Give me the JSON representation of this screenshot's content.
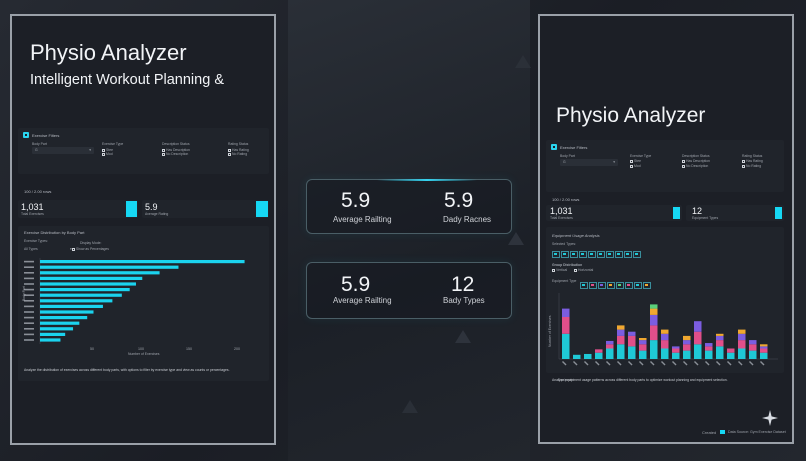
{
  "left": {
    "title": "Physio Analyzer",
    "subtitle": "Intelligent Workout Planning &",
    "filters": {
      "heading": "Exercise Filters",
      "body_part_label": "Body Part",
      "body_part_value": "G",
      "exercise_type_label": "Exercise Type",
      "exercise_type_options": [
        "Stee",
        "Mod"
      ],
      "description_status_label": "Description Status",
      "description_status_options": [
        "Has Description",
        "No Description"
      ],
      "rating_status_label": "Rating Status",
      "rating_status_options": [
        "Has Rating",
        "No Rating"
      ]
    },
    "rows_count": "100 / 2.00 rows",
    "kpi1_value": "1,031",
    "kpi1_label": "Total Exercises",
    "kpi2_value": "5.9",
    "kpi2_label": "Average Rating",
    "chart": {
      "title": "Exercise Distribution by Body Part",
      "type_label": "Exercise Types:",
      "type_value": "All Types",
      "display_label": "Display Mode:",
      "display_option": "Show as Percentages",
      "ylabel": "Body Part",
      "xlabel": "Number of Exercises",
      "caption": "Analyze the distribution of exercises across different body parts, with options to filter by exercise type and view as counts or percentages."
    }
  },
  "center": {
    "stat1": {
      "value": "5.9",
      "label": "Average Railting"
    },
    "stat2": {
      "value": "5.9",
      "label": "Dady Racnes"
    },
    "stat3": {
      "value": "5.9",
      "label": "Average Railting"
    },
    "stat4": {
      "value": "12",
      "label": "Bady Types"
    }
  },
  "right": {
    "title": "Physio Analyzer",
    "filters": {
      "heading": "Exercise Filters",
      "body_part_label": "Body Part",
      "body_part_value": "G",
      "exercise_type_label": "Exercise Type",
      "exercise_type_options": [
        "Stee",
        "Mod"
      ],
      "description_status_label": "Description Status",
      "description_status_options": [
        "Has Description",
        "No Description"
      ],
      "rating_status_label": "Rating Status",
      "rating_status_options": [
        "Has Rating",
        "No Rating"
      ]
    },
    "rows_count": "100 / 2.00 rows",
    "kpi1_value": "1,031",
    "kpi1_label": "Total Exercises",
    "kpi2_value": "12",
    "kpi2_label": "Equipment Types",
    "chart": {
      "title": "Equipment Usage Analysis",
      "selected_types_label": "Selected Types:",
      "group_label": "Group Distribution",
      "group_options": [
        "Vertical",
        "Horizontal"
      ],
      "equipment_label": "Equipment Type",
      "ylabel": "Number of Exercises",
      "xlabel": "Equipment",
      "caption": "Analyze equipment usage patterns across different body parts to optimize workout planning and equipment selection."
    },
    "footer_left": "Created",
    "footer_right": "Data Source: Gym Exercise Dataset"
  },
  "colors": {
    "accent": "#16d8f4",
    "panel_border": "#9aa0a8",
    "background": "#1f232b"
  },
  "chart_data": [
    {
      "type": "bar",
      "orientation": "horizontal",
      "title": "Exercise Distribution by Body Part",
      "ylabel": "Body Part",
      "xlabel": "Number of Exercises",
      "values": [
        650,
        440,
        380,
        325,
        305,
        285,
        260,
        230,
        200,
        170,
        150,
        125,
        105,
        80,
        65
      ],
      "xticks": [
        "50",
        "100",
        "150",
        "200"
      ]
    },
    {
      "type": "bar",
      "stacked": true,
      "title": "Equipment Usage Analysis",
      "ylabel": "Number of Exercises",
      "xlabel": "Equipment",
      "series_colors": [
        "#1fc9d6",
        "#e04f8a",
        "#7b5de0",
        "#f0a830",
        "#5ad07a"
      ],
      "stacks": [
        [
          60,
          40,
          20,
          0,
          0
        ],
        [
          10,
          0,
          0,
          0,
          0
        ],
        [
          12,
          0,
          0,
          0,
          0
        ],
        [
          15,
          8,
          0,
          0,
          0
        ],
        [
          25,
          10,
          8,
          0,
          0
        ],
        [
          35,
          20,
          15,
          10,
          0
        ],
        [
          30,
          25,
          10,
          0,
          0
        ],
        [
          20,
          15,
          10,
          5,
          0
        ],
        [
          45,
          35,
          25,
          15,
          10
        ],
        [
          25,
          20,
          15,
          10,
          0
        ],
        [
          15,
          10,
          5,
          0,
          0
        ],
        [
          20,
          15,
          10,
          10,
          0
        ],
        [
          35,
          30,
          25,
          0,
          0
        ],
        [
          20,
          10,
          8,
          0,
          0
        ],
        [
          30,
          15,
          10,
          5,
          0
        ],
        [
          15,
          10,
          0,
          0,
          0
        ],
        [
          25,
          20,
          15,
          10,
          0
        ],
        [
          20,
          15,
          10,
          0,
          0
        ],
        [
          15,
          10,
          5,
          5,
          0
        ]
      ]
    }
  ]
}
